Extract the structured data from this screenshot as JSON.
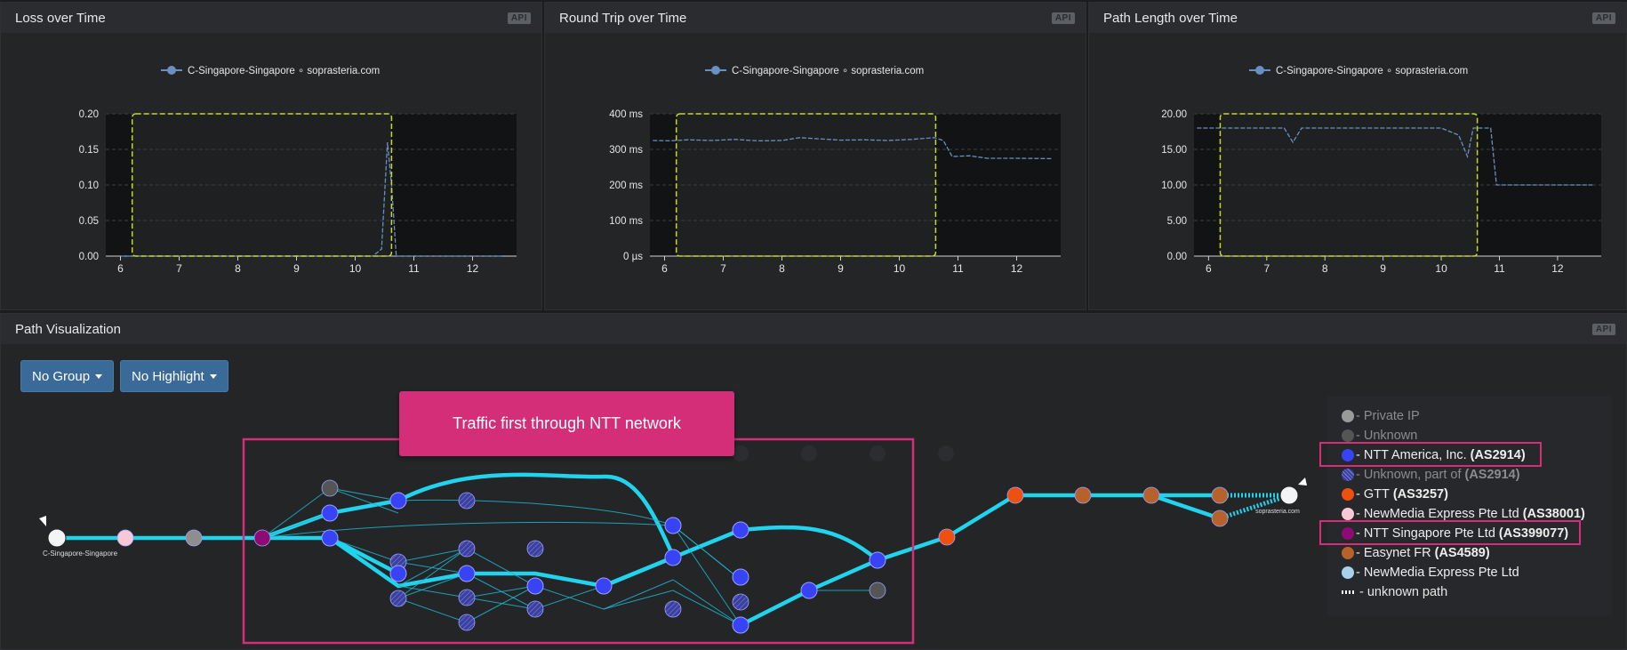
{
  "panels": {
    "loss": {
      "title": "Loss over Time",
      "api": "API"
    },
    "rtt": {
      "title": "Round Trip over Time",
      "api": "API"
    },
    "path_length": {
      "title": "Path Length over Time",
      "api": "API"
    },
    "path_viz": {
      "title": "Path Visualization",
      "api": "API"
    }
  },
  "chart_data": [
    {
      "type": "line",
      "title": "Loss over Time",
      "legend": "C-Singapore-Singapore ∘ soprasteria.com",
      "x": [
        6,
        6.5,
        7,
        7.5,
        8,
        8.5,
        9,
        9.5,
        10,
        10.3,
        10.45,
        10.55,
        10.62,
        10.7,
        11,
        11.5,
        12,
        12.5
      ],
      "series": [
        {
          "name": "C-Singapore-Singapore ∘ soprasteria.com",
          "values": [
            0,
            0,
            0,
            0,
            0,
            0,
            0,
            0,
            0,
            0,
            0.01,
            0.16,
            0.1,
            0,
            0,
            0,
            0,
            0
          ]
        }
      ],
      "yticks": [
        "0.00",
        "0.05",
        "0.10",
        "0.15",
        "0.20"
      ],
      "xticks": [
        "6",
        "7",
        "8",
        "9",
        "10",
        "11",
        "12"
      ],
      "xlim": [
        5.75,
        12.75
      ],
      "ylim": [
        0,
        0.2
      ],
      "selection": [
        6.2,
        10.62
      ]
    },
    {
      "type": "line",
      "title": "Round Trip over Time",
      "legend": "C-Singapore-Singapore ∘ soprasteria.com",
      "x": [
        5.8,
        6.1,
        6.4,
        6.8,
        7.2,
        7.6,
        8,
        8.3,
        8.6,
        9,
        9.4,
        9.8,
        10.2,
        10.6,
        10.75,
        10.9,
        11.2,
        11.5,
        12,
        12.6
      ],
      "series": [
        {
          "name": "C-Singapore-Singapore ∘ soprasteria.com",
          "values": [
            325,
            324,
            327,
            325,
            328,
            324,
            325,
            333,
            330,
            326,
            327,
            325,
            328,
            333,
            325,
            280,
            282,
            275,
            275,
            274
          ]
        }
      ],
      "yticks": [
        "0 µs",
        "100 ms",
        "200 ms",
        "300 ms",
        "400 ms"
      ],
      "xticks": [
        "6",
        "7",
        "8",
        "9",
        "10",
        "11",
        "12"
      ],
      "xlim": [
        5.75,
        12.75
      ],
      "ylim": [
        0,
        400
      ],
      "selection": [
        6.2,
        10.62
      ]
    },
    {
      "type": "line",
      "title": "Path Length over Time",
      "legend": "C-Singapore-Singapore ∘ soprasteria.com",
      "x": [
        5.8,
        6.5,
        7.3,
        7.45,
        7.6,
        8,
        9,
        10,
        10.3,
        10.45,
        10.55,
        10.65,
        10.85,
        10.95,
        11.5,
        12.6
      ],
      "series": [
        {
          "name": "C-Singapore-Singapore ∘ soprasteria.com",
          "values": [
            18,
            18,
            18,
            16,
            18,
            18,
            18,
            18,
            17,
            14,
            18,
            18,
            18,
            10,
            10,
            10
          ]
        }
      ],
      "yticks": [
        "0.00",
        "5.00",
        "10.00",
        "15.00",
        "20.00"
      ],
      "xticks": [
        "6",
        "7",
        "8",
        "9",
        "10",
        "11",
        "12"
      ],
      "xlim": [
        5.75,
        12.75
      ],
      "ylim": [
        0,
        20
      ],
      "selection": [
        6.2,
        10.62
      ]
    }
  ],
  "toolbar": {
    "group_label": "No Group",
    "highlight_label": "No Highlight"
  },
  "callout": {
    "text": "Traffic first through NTT network"
  },
  "endpoints": {
    "source_label": "C-Singapore-Singapore",
    "target_label": "soprasteria.com"
  },
  "legend": {
    "items": [
      {
        "color": "#9a9a9a",
        "name": "Private IP",
        "asn": "",
        "muted": true
      },
      {
        "color": "#555555",
        "name": "Unknown",
        "asn": "",
        "muted": true
      },
      {
        "color": "#3843f5",
        "name": "NTT America, Inc.",
        "asn": "(AS2914)",
        "muted": false,
        "highlighted": true
      },
      {
        "color": "#3a3f9c",
        "name": "Unknown, part of",
        "asn": "(AS2914)",
        "muted": true,
        "hatched": true
      },
      {
        "color": "#f0500f",
        "name": "GTT",
        "asn": "(AS3257)",
        "muted": false
      },
      {
        "color": "#f7c9d7",
        "name": "NewMedia Express Pte Ltd",
        "asn": "(AS38001)",
        "muted": false
      },
      {
        "color": "#8e0a74",
        "name": "NTT Singapore Pte Ltd",
        "asn": "(AS399077)",
        "muted": false,
        "highlighted": true
      },
      {
        "color": "#b8622b",
        "name": "Easynet FR",
        "asn": "(AS4589)",
        "muted": false
      },
      {
        "color": "#a6d3ec",
        "name": "NewMedia Express Pte Ltd",
        "asn": "",
        "muted": false
      }
    ],
    "unknown_path_label": "- unknown path"
  },
  "colors": {
    "accent": "#22d3ee",
    "selection": "#c8d62a",
    "highlight_box": "#d42e79",
    "series_line": "#6a8fc0"
  }
}
